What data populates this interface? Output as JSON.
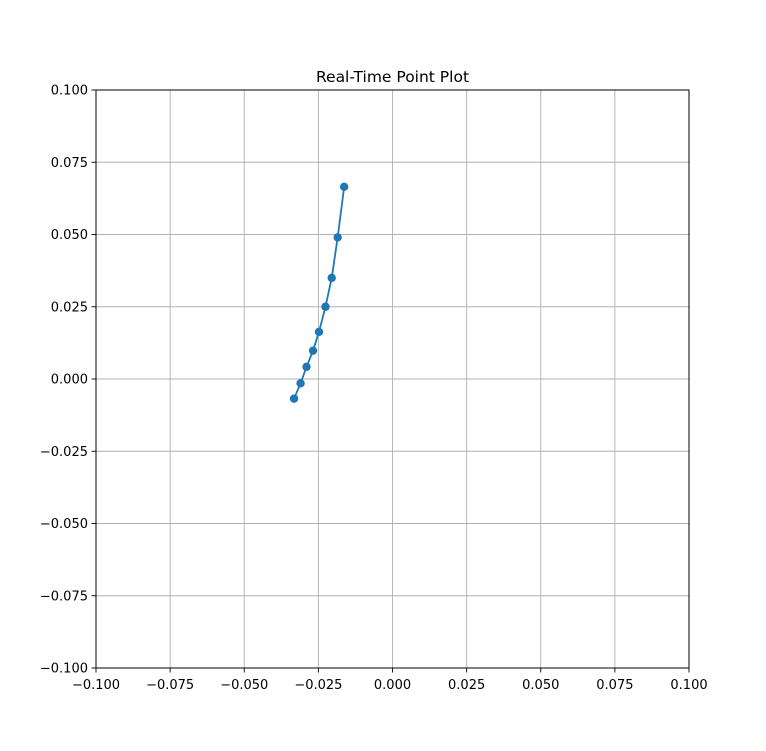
{
  "chart_data": {
    "type": "line",
    "title": "Real-Time Point Plot",
    "xlabel": "",
    "ylabel": "",
    "xlim": [
      -0.1,
      0.1
    ],
    "ylim": [
      -0.1,
      0.1
    ],
    "grid": true,
    "x_ticks": [
      -0.1,
      -0.075,
      -0.05,
      -0.025,
      0.0,
      0.025,
      0.05,
      0.075,
      0.1
    ],
    "y_ticks": [
      -0.1,
      -0.075,
      -0.05,
      -0.025,
      0.0,
      0.025,
      0.05,
      0.075,
      0.1
    ],
    "x_tick_labels": [
      "−0.100",
      "−0.075",
      "−0.050",
      "−0.025",
      "0.000",
      "0.025",
      "0.050",
      "0.075",
      "0.100"
    ],
    "y_tick_labels": [
      "−0.100",
      "−0.075",
      "−0.050",
      "−0.025",
      "0.000",
      "0.025",
      "0.050",
      "0.075",
      "0.100"
    ],
    "series": [
      {
        "color": "#1f77b4",
        "marker": "circle",
        "x": [
          -0.0332,
          -0.031,
          -0.029,
          -0.0268,
          -0.0248,
          -0.0226,
          -0.0205,
          -0.0185,
          -0.0163
        ],
        "y": [
          -0.0068,
          -0.0015,
          0.0042,
          0.0098,
          0.0163,
          0.025,
          0.035,
          0.049,
          0.0665
        ]
      }
    ]
  }
}
